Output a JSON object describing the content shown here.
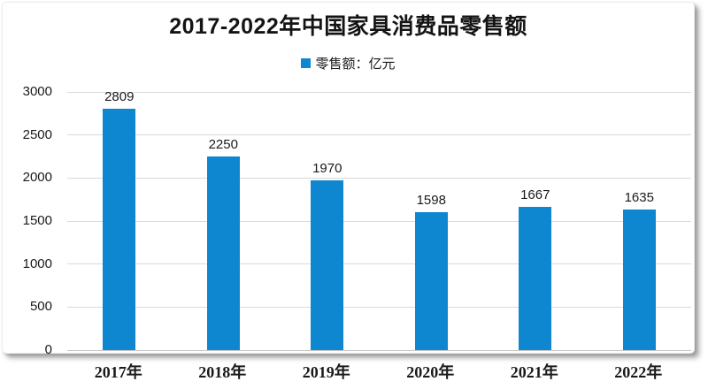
{
  "chart_data": {
    "type": "bar",
    "title": "2017-2022年中国家具消费品零售额",
    "legend": [
      "零售额：亿元"
    ],
    "legend_position": "top-center",
    "categories": [
      "2017年",
      "2018年",
      "2019年",
      "2020年",
      "2021年",
      "2022年"
    ],
    "values": [
      2809,
      2250,
      1970,
      1598,
      1667,
      1635
    ],
    "xlabel": "",
    "ylabel": "",
    "ylim": [
      0,
      3000
    ],
    "yticks": [
      0,
      500,
      1000,
      1500,
      2000,
      2500,
      3000
    ],
    "grid": true,
    "bar_color": "#0e86d0",
    "gridline_color": "#d9d9d9",
    "title_color": "#141414",
    "label_color": "#1a1a1a"
  }
}
